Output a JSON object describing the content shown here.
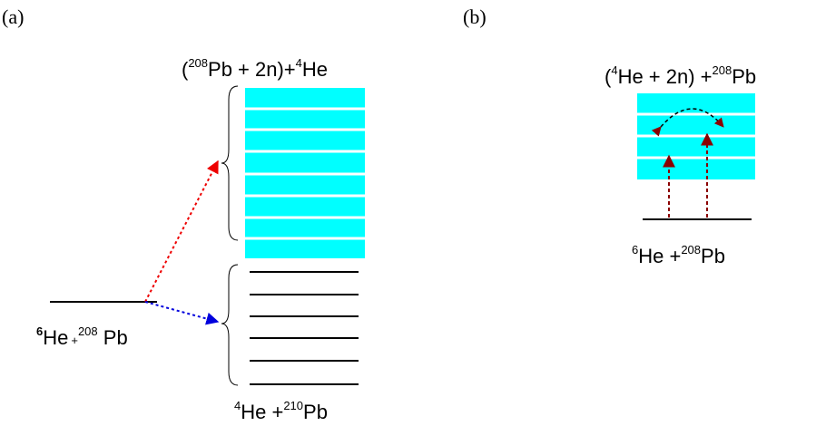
{
  "panel_a": {
    "label": "(a)",
    "top_label": [
      "(",
      "208",
      "Pb + 2n)+",
      "4",
      "He"
    ],
    "ground_label": [
      "6",
      "He",
      "+",
      "208",
      " Pb"
    ],
    "bottom_label": [
      "4",
      "He  +",
      "210",
      "Pb"
    ]
  },
  "panel_b": {
    "label": "(b)",
    "top_label": [
      "(",
      "4",
      "He + 2n) +",
      "208",
      "Pb"
    ],
    "ground_label": [
      "6",
      "He  +",
      "208",
      "Pb"
    ]
  }
}
